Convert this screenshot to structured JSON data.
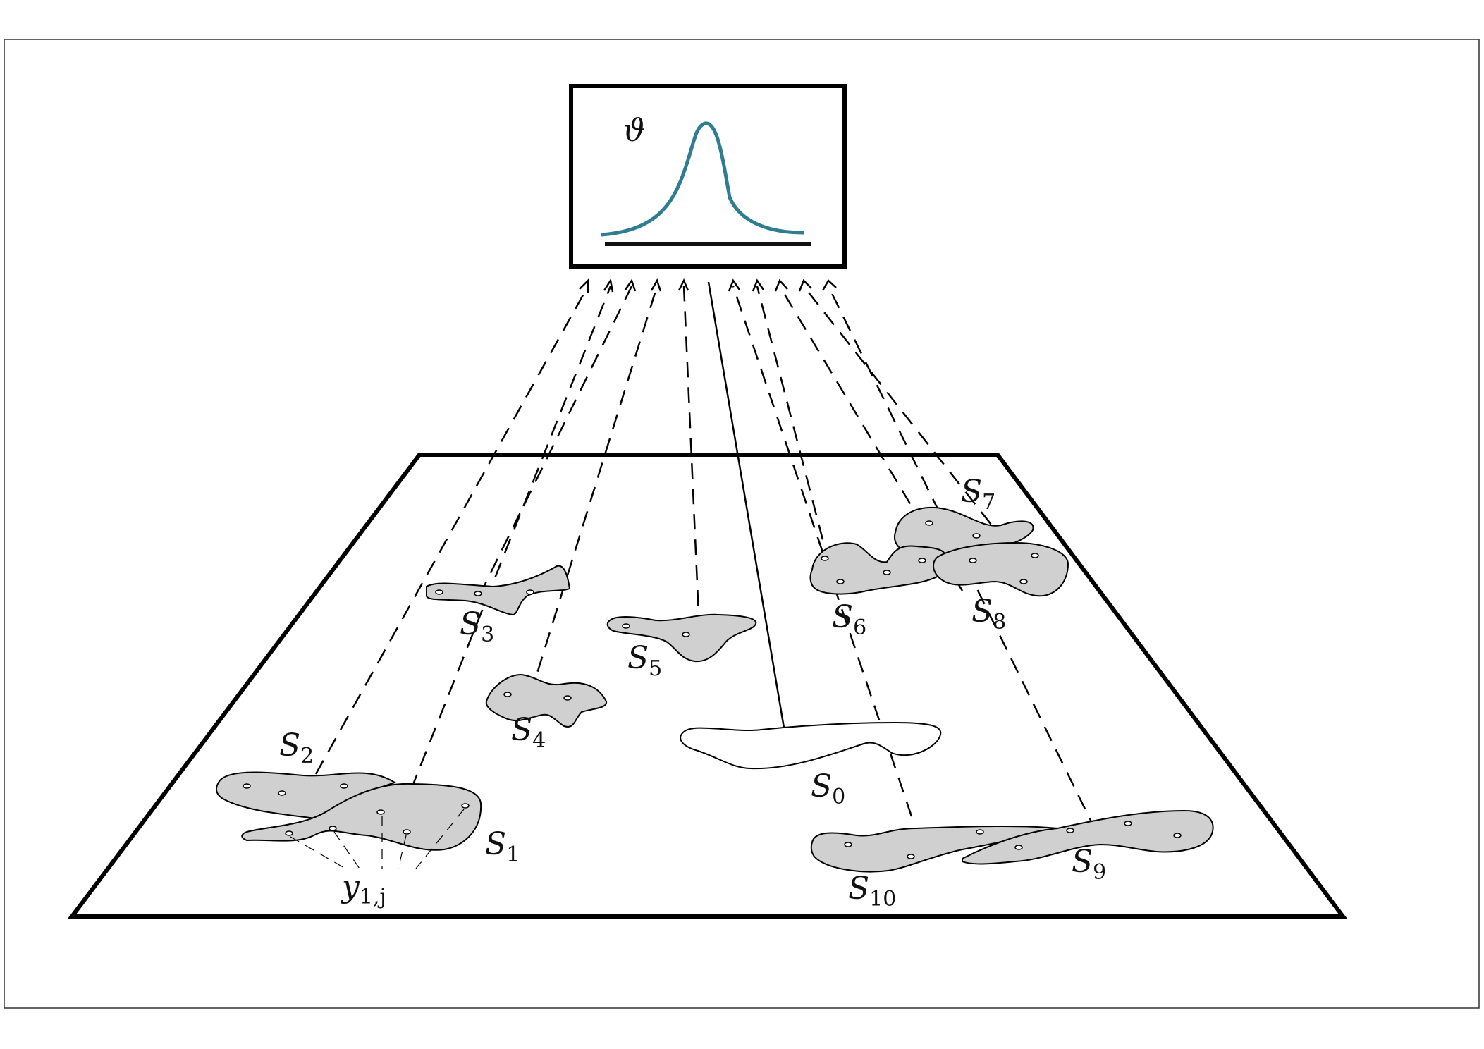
{
  "diagram": {
    "parameter_symbol": "ϑ",
    "curve_color": "#2e7d91",
    "region_fill": "#d0d0d0",
    "regions": [
      {
        "id": "S0",
        "letter": "S",
        "subscript": "0"
      },
      {
        "id": "S1",
        "letter": "S",
        "subscript": "1"
      },
      {
        "id": "S2",
        "letter": "S",
        "subscript": "2"
      },
      {
        "id": "S3",
        "letter": "S",
        "subscript": "3"
      },
      {
        "id": "S4",
        "letter": "S",
        "subscript": "4"
      },
      {
        "id": "S5",
        "letter": "S",
        "subscript": "5"
      },
      {
        "id": "S6",
        "letter": "S",
        "subscript": "6"
      },
      {
        "id": "S7",
        "letter": "S",
        "subscript": "7"
      },
      {
        "id": "S8",
        "letter": "S",
        "subscript": "8"
      },
      {
        "id": "S9",
        "letter": "S",
        "subscript": "9"
      },
      {
        "id": "S10",
        "letter": "S",
        "subscript": "10"
      }
    ],
    "observation_label": {
      "letter": "y",
      "subscript": "1,j"
    }
  }
}
